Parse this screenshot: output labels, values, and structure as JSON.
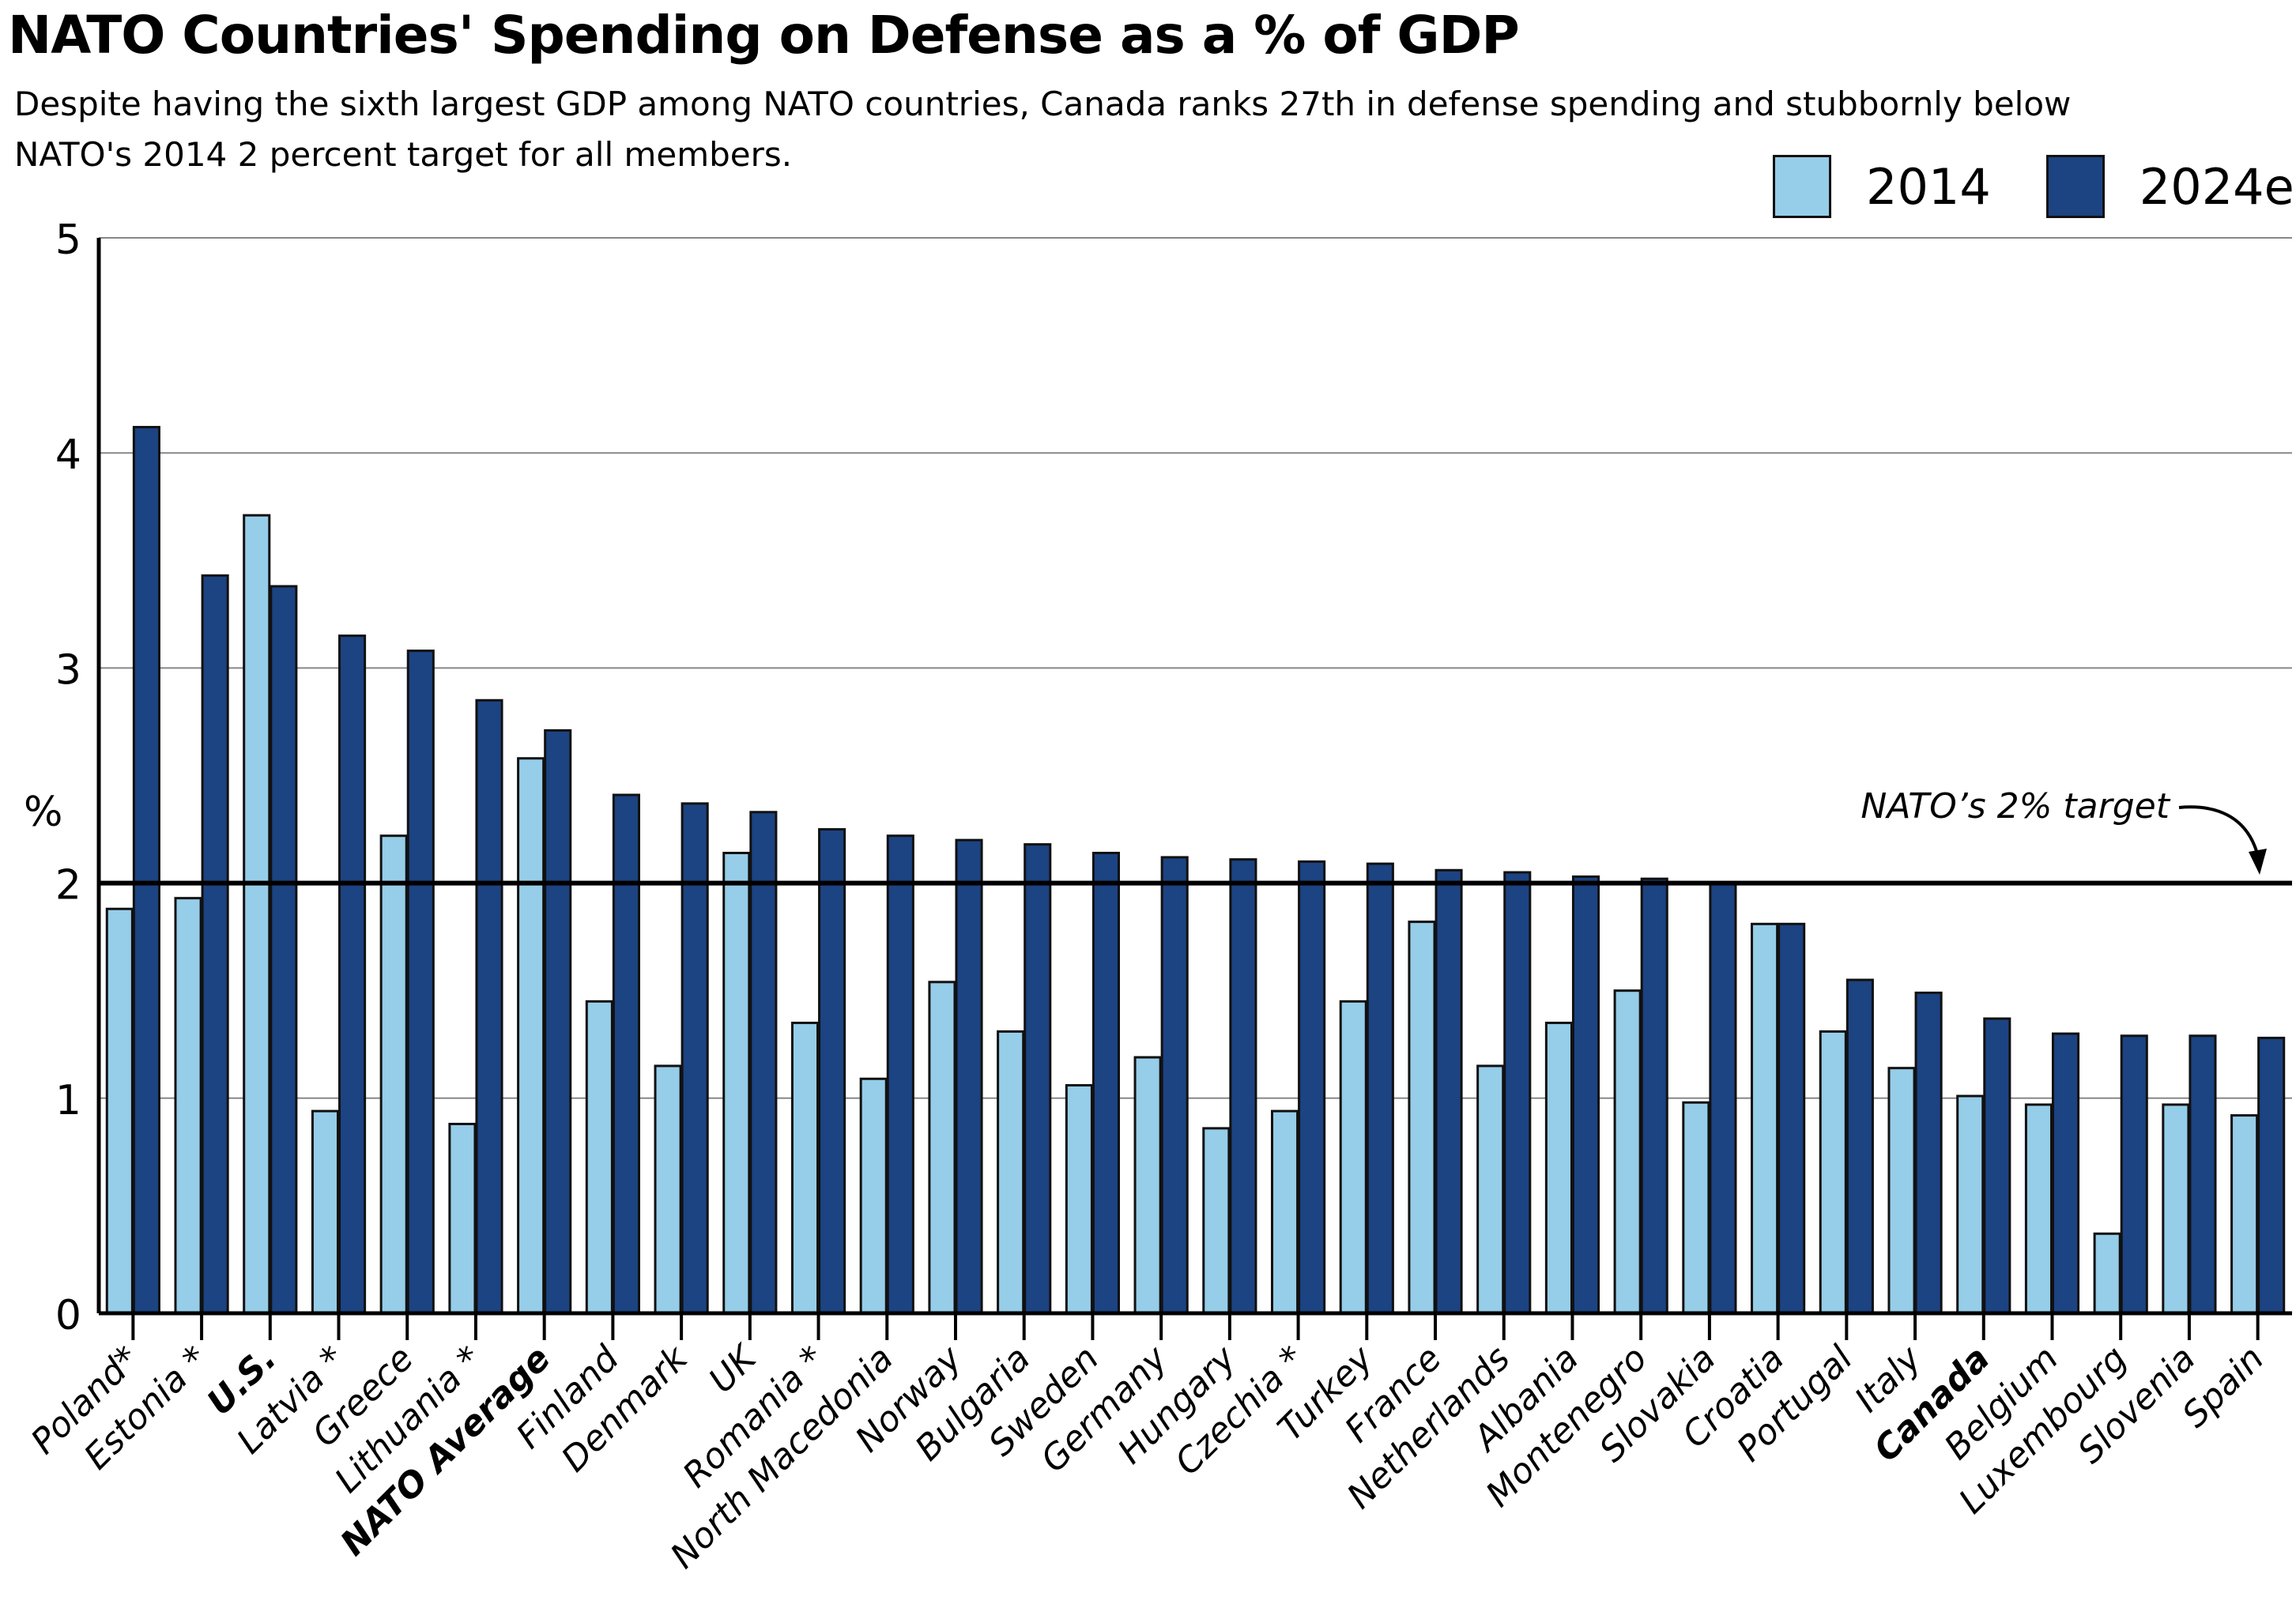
{
  "header": {
    "title": "NATO Countries' Spending on Defense as a % of GDP",
    "subtitle": "Despite having the sixth largest GDP among NATO countries, Canada ranks 27th in defense spending and stubbornly below NATO's 2014 2 percent target for all members."
  },
  "colors": {
    "series_2014": "#96CDE8",
    "series_2024": "#1C4382",
    "bar_outline": "#111111",
    "target_line": "#000000",
    "grid": "#888888"
  },
  "chart_data": {
    "type": "bar",
    "title": "NATO Countries' Spending on Defense as a % of GDP",
    "xlabel": "",
    "ylabel": "%",
    "ylim": [
      0,
      5
    ],
    "yticks": [
      0,
      1,
      2,
      3,
      4,
      5
    ],
    "grid": true,
    "legend_position": "top-right",
    "categories": [
      "Poland*",
      "Estonia *",
      "U.S.",
      "Latvia *",
      "Greece",
      "Lithuania *",
      "NATO Average",
      "Finland",
      "Denmark",
      "UK",
      "Romania *",
      "North Macedonia",
      "Norway",
      "Bulgaria",
      "Sweden",
      "Germany",
      "Hungary",
      "Czechia *",
      "Turkey",
      "France",
      "Netherlands",
      "Albania",
      "Montenegro",
      "Slovakia",
      "Croatia",
      "Portugal",
      "Italy",
      "Canada",
      "Belgium",
      "Luxembourg",
      "Slovenia",
      "Spain"
    ],
    "bold_categories": [
      "U.S.",
      "NATO Average",
      "Canada"
    ],
    "series": [
      {
        "name": "2014",
        "values": [
          1.88,
          1.93,
          3.71,
          0.94,
          2.22,
          0.88,
          2.58,
          1.45,
          1.15,
          2.14,
          1.35,
          1.09,
          1.54,
          1.31,
          1.06,
          1.19,
          0.86,
          0.94,
          1.45,
          1.82,
          1.15,
          1.35,
          1.5,
          0.98,
          1.81,
          1.31,
          1.14,
          1.01,
          0.97,
          0.37,
          0.97,
          0.92
        ]
      },
      {
        "name": "2024e",
        "values": [
          4.12,
          3.43,
          3.38,
          3.15,
          3.08,
          2.85,
          2.71,
          2.41,
          2.37,
          2.33,
          2.25,
          2.22,
          2.2,
          2.18,
          2.14,
          2.12,
          2.11,
          2.1,
          2.09,
          2.06,
          2.05,
          2.03,
          2.02,
          2.0,
          1.81,
          1.55,
          1.49,
          1.37,
          1.3,
          1.29,
          1.29,
          1.28
        ]
      }
    ],
    "reference_line": {
      "value": 2,
      "label": "NATO’s 2% target"
    },
    "legend": [
      "2014",
      "2024e"
    ]
  }
}
